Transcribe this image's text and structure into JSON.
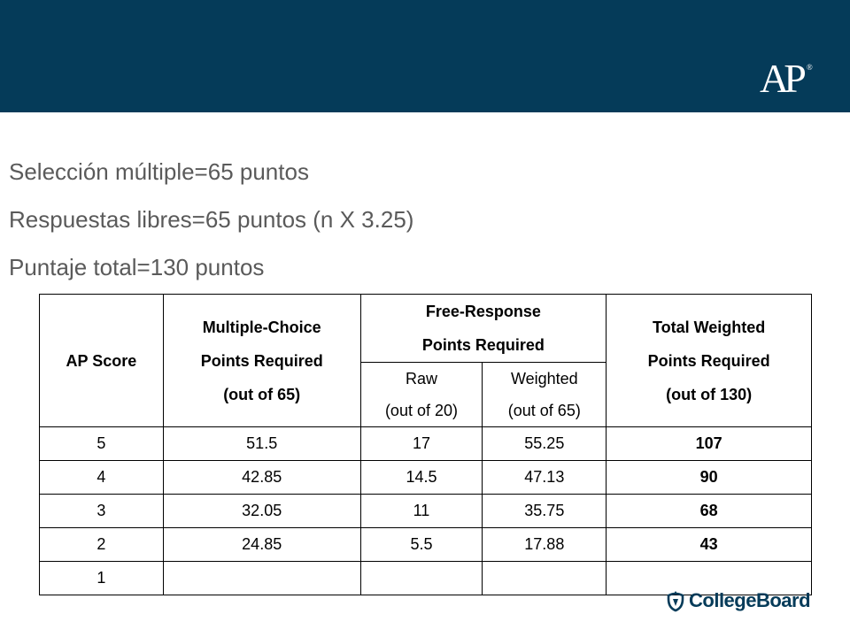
{
  "header": {
    "logo_text": "AP",
    "logo_reg": "®"
  },
  "bullets": [
    "Selección múltiple=65 puntos",
    "Respuestas libres=65 puntos (n X 3.25)",
    "Puntaje total=130 puntos"
  ],
  "table": {
    "headers": {
      "ap_score": "AP Score",
      "mc_line1": "Multiple-Choice",
      "mc_line2": "Points Required",
      "mc_line3": "(out of 65)",
      "fr_line1": "Free-Response",
      "fr_line2": "Points Required",
      "raw_line1": "Raw",
      "raw_line2": "(out of 20)",
      "weighted_line1": "Weighted",
      "weighted_line2": "(out of 65)",
      "total_line1": "Total Weighted",
      "total_line2": "Points Required",
      "total_line3": "(out of 130)"
    },
    "rows": [
      {
        "score": "5",
        "mc": "51.5",
        "raw": "17",
        "weighted": "55.25",
        "total": "107"
      },
      {
        "score": "4",
        "mc": "42.85",
        "raw": "14.5",
        "weighted": "47.13",
        "total": "90"
      },
      {
        "score": "3",
        "mc": "32.05",
        "raw": "11",
        "weighted": "35.75",
        "total": "68"
      },
      {
        "score": "2",
        "mc": "24.85",
        "raw": "5.5",
        "weighted": "17.88",
        "total": "43"
      },
      {
        "score": "1",
        "mc": "",
        "raw": "",
        "weighted": "",
        "total": ""
      }
    ]
  },
  "footer": {
    "brand": "CollegeBoard",
    "brand_icon": "acorn-icon"
  },
  "colors": {
    "banner": "#053b59",
    "bullet_text": "#5a5a5a"
  }
}
